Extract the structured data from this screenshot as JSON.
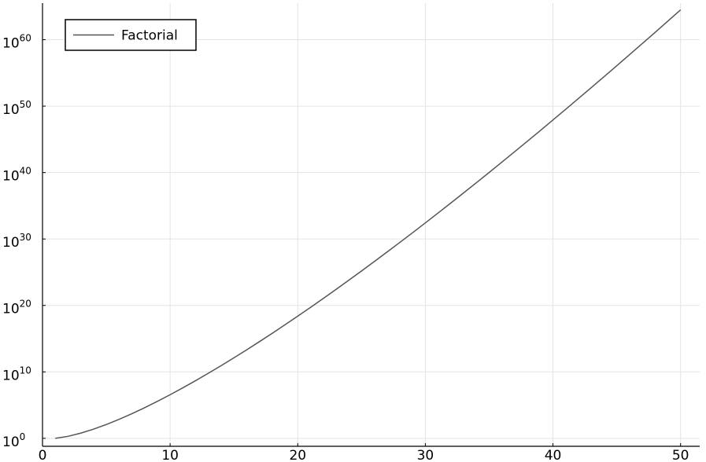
{
  "chart_data": {
    "type": "line",
    "title": "",
    "xlabel": "",
    "ylabel": "",
    "xlim": [
      0,
      51.5
    ],
    "ylim_log10": [
      -1.2,
      65.5
    ],
    "yscale": "log10",
    "grid": true,
    "legend_position": "top-left",
    "x_ticks": [
      {
        "value": 0,
        "label": "0"
      },
      {
        "value": 10,
        "label": "10"
      },
      {
        "value": 20,
        "label": "20"
      },
      {
        "value": 30,
        "label": "30"
      },
      {
        "value": 40,
        "label": "40"
      },
      {
        "value": 50,
        "label": "50"
      }
    ],
    "y_ticks": [
      {
        "value": 0,
        "base": "10",
        "exp": "0"
      },
      {
        "value": 10,
        "base": "10",
        "exp": "10"
      },
      {
        "value": 20,
        "base": "10",
        "exp": "20"
      },
      {
        "value": 30,
        "base": "10",
        "exp": "30"
      },
      {
        "value": 40,
        "base": "10",
        "exp": "40"
      },
      {
        "value": 50,
        "base": "10",
        "exp": "50"
      },
      {
        "value": 60,
        "base": "10",
        "exp": "60"
      }
    ],
    "series": [
      {
        "name": "Factorial",
        "color": "#555555",
        "x": [
          1,
          2,
          3,
          4,
          5,
          6,
          7,
          8,
          9,
          10,
          11,
          12,
          13,
          14,
          15,
          16,
          17,
          18,
          19,
          20,
          21,
          22,
          23,
          24,
          25,
          26,
          27,
          28,
          29,
          30,
          31,
          32,
          33,
          34,
          35,
          36,
          37,
          38,
          39,
          40,
          41,
          42,
          43,
          44,
          45,
          46,
          47,
          48,
          49,
          50
        ],
        "y": [
          "1",
          "2",
          "6",
          "24",
          "120",
          "720",
          "5040",
          "40320",
          "362880",
          "3628800",
          "3.99e7",
          "4.79e8",
          "6.23e9",
          "8.72e10",
          "1.31e12",
          "2.09e13",
          "3.56e14",
          "6.40e15",
          "1.22e17",
          "2.43e18",
          "5.11e19",
          "1.12e21",
          "2.59e22",
          "6.20e23",
          "1.55e25",
          "4.03e26",
          "1.09e28",
          "3.05e29",
          "8.84e30",
          "2.65e32",
          "8.22e33",
          "2.63e35",
          "8.68e36",
          "2.95e38",
          "1.03e40",
          "3.72e41",
          "1.38e43",
          "5.23e44",
          "2.04e46",
          "8.16e47",
          "3.35e49",
          "1.41e51",
          "6.04e52",
          "2.66e54",
          "1.20e56",
          "5.50e57",
          "2.59e59",
          "1.24e61",
          "6.08e62",
          "3.04e64"
        ]
      }
    ]
  }
}
